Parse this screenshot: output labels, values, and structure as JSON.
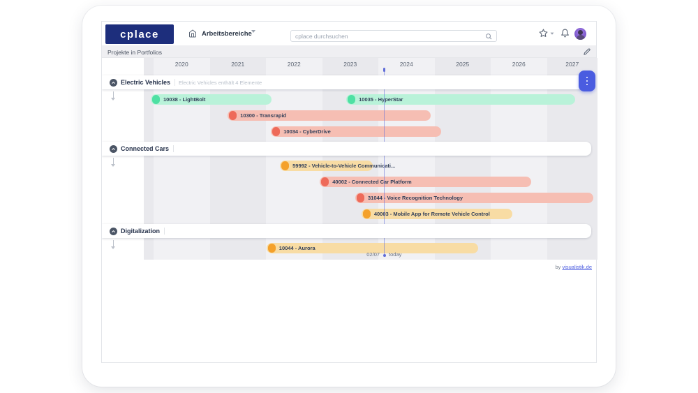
{
  "navbar": {
    "logo_text": "cplace",
    "workspace_label": "Arbeitsbereiche",
    "search": {
      "placeholder": "cplace durchsuchen",
      "value": ""
    },
    "icons": [
      "home-icon",
      "chevron-down-icon",
      "search-icon",
      "star-icon",
      "bell-icon",
      "avatar"
    ]
  },
  "subbar": {
    "title": "Projekte in Portfolios"
  },
  "footer": {
    "prefix": "by ",
    "link_text": "visualistik.de"
  },
  "timeline": {
    "type": "gantt",
    "years": [
      "2020",
      "2021",
      "2022",
      "2023",
      "2024",
      "2025",
      "2026",
      "2027"
    ],
    "today": {
      "date_label": "02/07",
      "word_label": "today",
      "year_position": 2024.1
    },
    "colors": {
      "green": {
        "cap": "#4ee0a3",
        "body": "#b9f2d9"
      },
      "red": {
        "cap": "#ee6a59",
        "body": "#f6beb3"
      },
      "orange": {
        "cap": "#f4a12b",
        "body": "#f8dca4"
      },
      "accent_button": "#4a5ce0",
      "logo_bg": "#1d2e7c"
    },
    "groups": [
      {
        "name": "Electric Vehicles",
        "subtitle": "Electric Vehicles enthält 4 Elemente",
        "has_menu_button": true,
        "items": [
          {
            "label": "10038 - LightBolt",
            "status": "green",
            "start": 2019.95,
            "end": 2022.1,
            "row": 0
          },
          {
            "label": "10035 - HyperStar",
            "status": "green",
            "start": 2023.43,
            "end": 2027.5,
            "row": 0
          },
          {
            "label": "10300 - Transrapid",
            "status": "red",
            "start": 2021.32,
            "end": 2024.93,
            "row": 1
          },
          {
            "label": "10034 - CyberDrive",
            "status": "red",
            "start": 2022.09,
            "end": 2025.12,
            "row": 2
          }
        ]
      },
      {
        "name": "Connected Cars",
        "subtitle": "",
        "has_menu_button": false,
        "items": [
          {
            "label": "59992 - Vehicle-to-Vehicle Communicati...",
            "status": "orange",
            "start": 2022.25,
            "end": 2023.9,
            "row": 0
          },
          {
            "label": "40002 - Connected Car Platform",
            "status": "red",
            "start": 2022.96,
            "end": 2026.72,
            "row": 1
          },
          {
            "label": "31044 - Voice Recognition Technology",
            "status": "red",
            "start": 2023.59,
            "end": 2027.83,
            "row": 2
          },
          {
            "label": "40003 - Mobile App for Remote Vehicle Control",
            "status": "orange",
            "start": 2023.7,
            "end": 2026.39,
            "row": 3
          }
        ]
      },
      {
        "name": "Digitalization",
        "subtitle": "",
        "has_menu_button": false,
        "items": [
          {
            "label": "10044 - Aurora",
            "status": "orange",
            "start": 2022.01,
            "end": 2025.78,
            "row": 0
          }
        ]
      }
    ]
  }
}
